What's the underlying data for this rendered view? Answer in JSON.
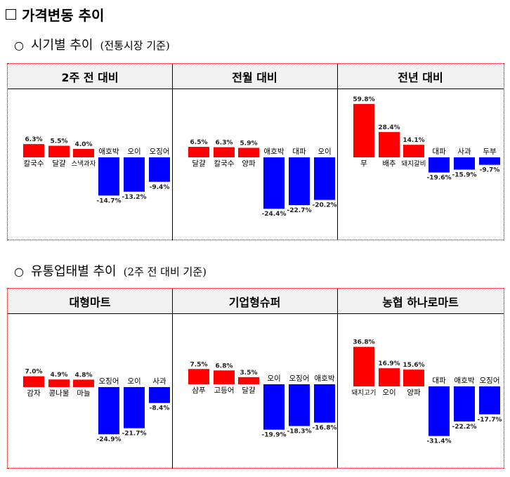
{
  "title": "가격변동 추이",
  "sections": [
    {
      "label": "시기별 추이",
      "note": "(전통시장 기준)"
    },
    {
      "label": "유통업태별 추이",
      "note": "(2주 전 대비 기준)"
    }
  ],
  "colors": {
    "increase": "#ff0000",
    "decrease": "#0000ff"
  },
  "chart_data": [
    {
      "type": "bar",
      "title": "2주 전 대비",
      "categories": [
        "칼국수",
        "달걀",
        "스낵과자",
        "애호박",
        "오이",
        "오징어"
      ],
      "values": [
        6.3,
        5.5,
        4.0,
        -14.7,
        -13.2,
        -9.4
      ],
      "labels": [
        "6.3%",
        "5.5%",
        "4.0%",
        "-14.7%",
        "-13.2%",
        "-9.4%"
      ]
    },
    {
      "type": "bar",
      "title": "전월 대비",
      "categories": [
        "달걀",
        "칼국수",
        "양파",
        "애호박",
        "대파",
        "오이"
      ],
      "values": [
        6.5,
        6.3,
        5.9,
        -24.4,
        -22.7,
        -20.2
      ],
      "labels": [
        "6.5%",
        "6.3%",
        "5.9%",
        "-24.4%",
        "-22.7%",
        "-20.2%"
      ]
    },
    {
      "type": "bar",
      "title": "전년 대비",
      "categories": [
        "무",
        "배추",
        "돼지갈비",
        "대파",
        "사과",
        "두부"
      ],
      "values": [
        59.8,
        28.4,
        14.1,
        -19.6,
        -15.9,
        -9.7
      ],
      "labels": [
        "59.8%",
        "28.4%",
        "14.1%",
        "-19.6%",
        "-15.9%",
        "-9.7%"
      ]
    },
    {
      "type": "bar",
      "title": "대형마트",
      "categories": [
        "감자",
        "콩나물",
        "마늘",
        "오징어",
        "오이",
        "사과"
      ],
      "values": [
        7.0,
        4.9,
        4.8,
        -24.9,
        -21.7,
        -8.4
      ],
      "labels": [
        "7.0%",
        "4.9%",
        "4.8%",
        "-24.9%",
        "-21.7%",
        "-8.4%"
      ]
    },
    {
      "type": "bar",
      "title": "기업형슈퍼",
      "categories": [
        "샴푸",
        "고등어",
        "달걀",
        "오이",
        "오징어",
        "애호박"
      ],
      "values": [
        7.5,
        6.8,
        3.5,
        -19.9,
        -18.3,
        -16.8
      ],
      "labels": [
        "7.5%",
        "6.8%",
        "3.5%",
        "-19.9%",
        "-18.3%",
        "-16.8%"
      ]
    },
    {
      "type": "bar",
      "title": "농협 하나로마트",
      "categories": [
        "돼지고기",
        "오이",
        "양파",
        "대파",
        "애호박",
        "오징어"
      ],
      "values": [
        36.8,
        16.9,
        15.6,
        -31.4,
        -22.2,
        -17.7
      ],
      "labels": [
        "36.8%",
        "16.9%",
        "15.6%",
        "-31.4%",
        "-22.2%",
        "-17.7%"
      ]
    }
  ]
}
